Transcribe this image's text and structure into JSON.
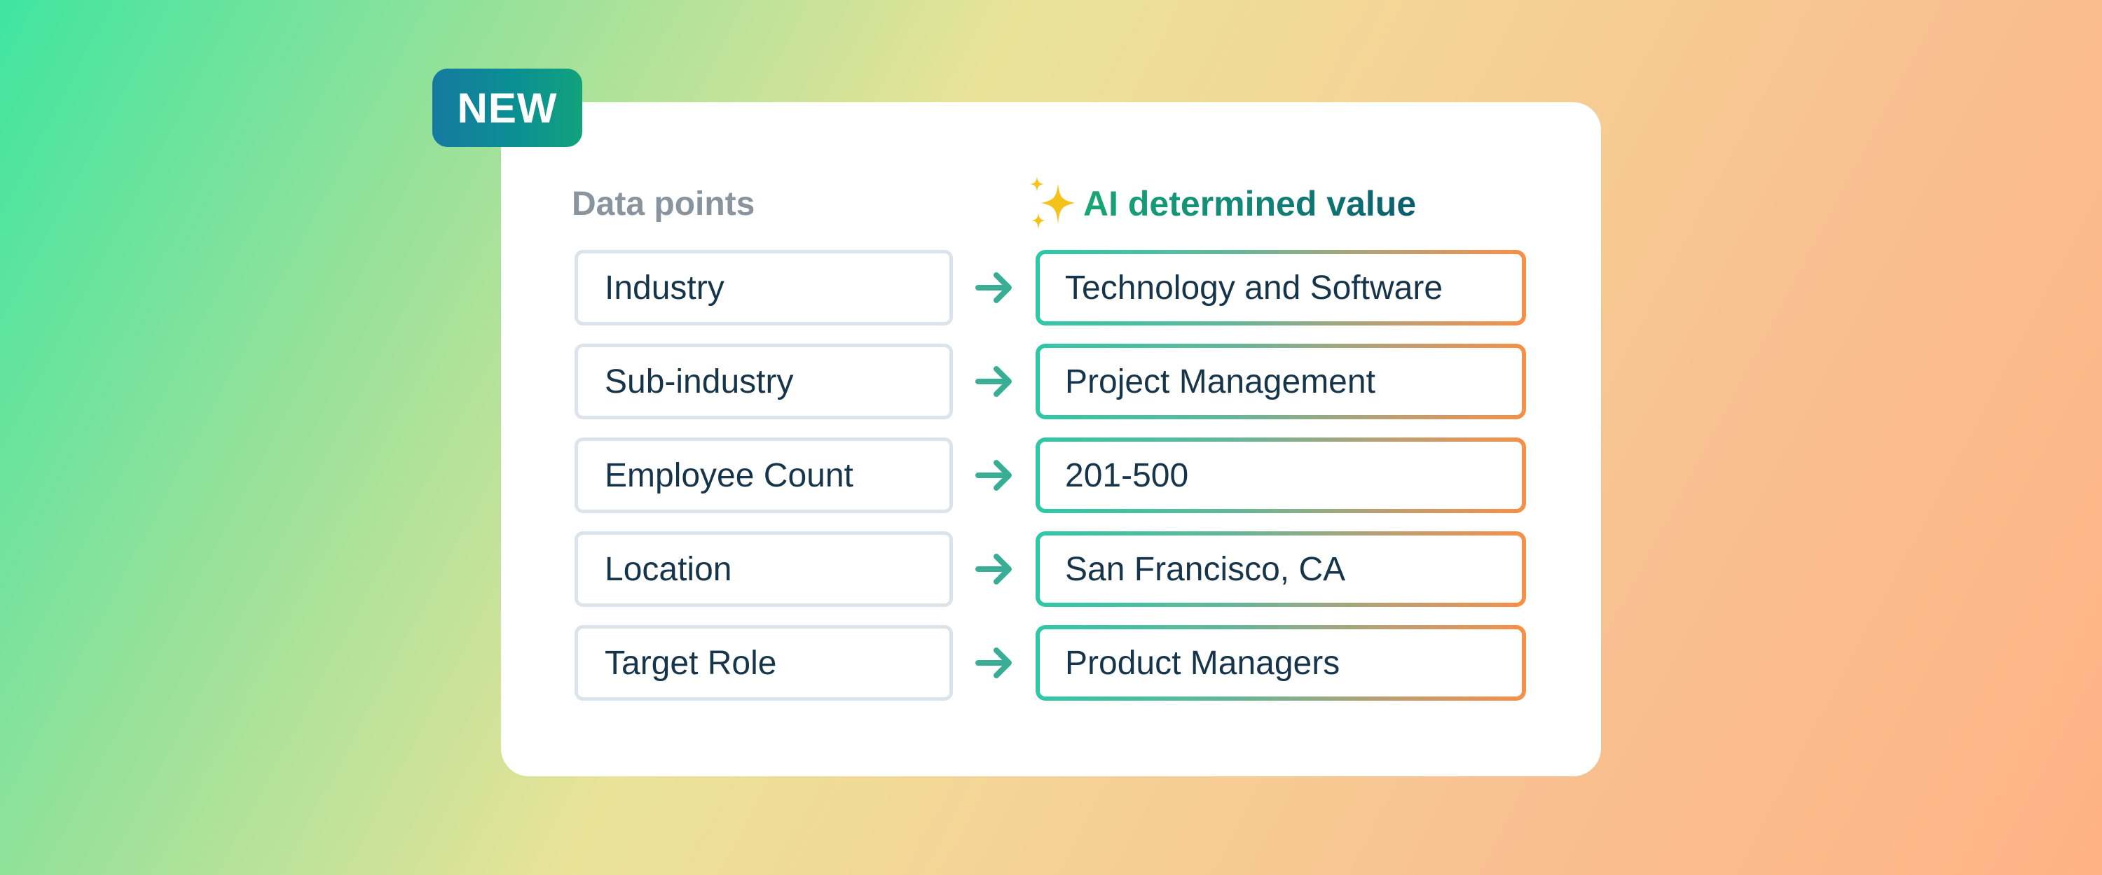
{
  "badge": {
    "label": "NEW"
  },
  "headers": {
    "left": "Data points",
    "right": "AI determined value",
    "right_icon": "sparkles-icon"
  },
  "rows": [
    {
      "label": "Industry",
      "value": "Technology and Software"
    },
    {
      "label": "Sub-industry",
      "value": "Project Management"
    },
    {
      "label": "Employee Count",
      "value": "201-500"
    },
    {
      "label": "Location",
      "value": "San Francisco, CA"
    },
    {
      "label": "Target Role",
      "value": "Product Managers"
    }
  ],
  "colors": {
    "arrow": "#3aae95",
    "field_border": "#dde3ea",
    "value_border_start": "#2ec8a7",
    "value_border_end": "#f78f47",
    "text": "#17354a",
    "sparkle": "#f5c21b"
  }
}
